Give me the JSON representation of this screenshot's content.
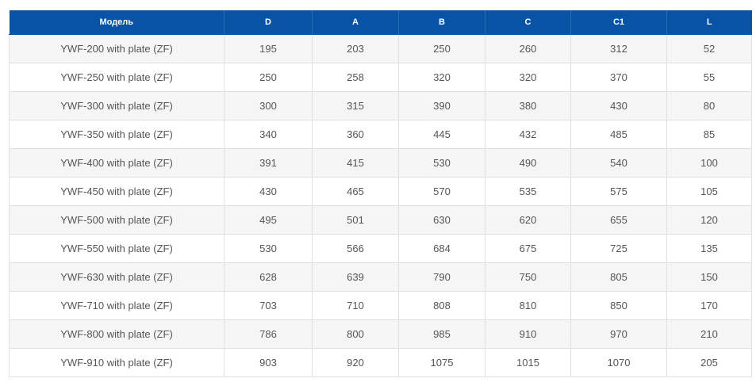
{
  "table": {
    "headers": [
      "Модель",
      "D",
      "A",
      "B",
      "C",
      "C1",
      "L"
    ],
    "rows": [
      [
        "YWF-200 with plate (ZF)",
        "195",
        "203",
        "250",
        "260",
        "312",
        "52"
      ],
      [
        "YWF-250 with plate (ZF)",
        "250",
        "258",
        "320",
        "320",
        "370",
        "55"
      ],
      [
        "YWF-300 with plate (ZF)",
        "300",
        "315",
        "390",
        "380",
        "430",
        "80"
      ],
      [
        "YWF-350 with plate (ZF)",
        "340",
        "360",
        "445",
        "432",
        "485",
        "85"
      ],
      [
        "YWF-400 with plate (ZF)",
        "391",
        "415",
        "530",
        "490",
        "540",
        "100"
      ],
      [
        "YWF-450 with plate (ZF)",
        "430",
        "465",
        "570",
        "535",
        "575",
        "105"
      ],
      [
        "YWF-500 with plate (ZF)",
        "495",
        "501",
        "630",
        "620",
        "655",
        "120"
      ],
      [
        "YWF-550 with plate (ZF)",
        "530",
        "566",
        "684",
        "675",
        "725",
        "135"
      ],
      [
        "YWF-630 with plate (ZF)",
        "628",
        "639",
        "790",
        "750",
        "805",
        "150"
      ],
      [
        "YWF-710 with plate (ZF)",
        "703",
        "710",
        "808",
        "810",
        "850",
        "170"
      ],
      [
        "YWF-800 with plate (ZF)",
        "786",
        "800",
        "985",
        "910",
        "970",
        "210"
      ],
      [
        "YWF-910 with plate (ZF)",
        "903",
        "920",
        "1075",
        "1015",
        "1070",
        "205"
      ]
    ]
  },
  "colors": {
    "header_background": "#0953a4",
    "header_text": "#ffffff",
    "row_alt_background": "#f5f5f5",
    "cell_text": "#555555",
    "border": "#e0e0e0"
  }
}
